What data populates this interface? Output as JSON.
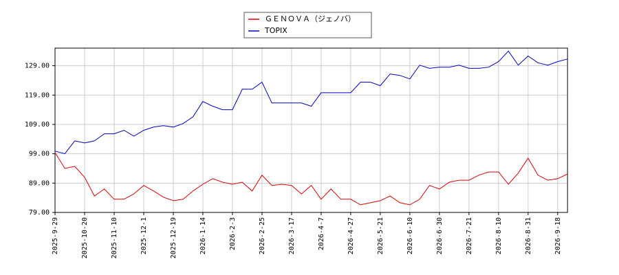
{
  "chart_data": {
    "type": "line",
    "categories": [
      "2025-9-29",
      null,
      null,
      "2025-10-20",
      null,
      null,
      "2025-11-10",
      null,
      null,
      "2025-12-1",
      null,
      null,
      "2025-12-19",
      null,
      null,
      "2026-1-14",
      null,
      null,
      "2026-2-3",
      null,
      null,
      "2026-2-25",
      null,
      null,
      "2026-3-17",
      null,
      null,
      "2026-4-7",
      null,
      null,
      "2026-4-27",
      null,
      null,
      "2026-5-21",
      null,
      null,
      "2026-6-10",
      null,
      null,
      "2026-6-30",
      null,
      null,
      "2026-7-21",
      null,
      null,
      "2026-8-10",
      null,
      null,
      "2026-8-31",
      null,
      null,
      "2026-9-18",
      null
    ],
    "series": [
      {
        "name": "ＧＥＮＯＶＡ（ジェノバ）",
        "color": "#e00000",
        "values": [
          99.4,
          94,
          94.7,
          91,
          84.6,
          87,
          83.5,
          83.5,
          85.3,
          88.2,
          86.3,
          84.2,
          83,
          83.5,
          86.3,
          88.6,
          90.5,
          89.3,
          88.6,
          89.3,
          86.3,
          91.7,
          88.2,
          88.6,
          88.2,
          85.3,
          88.2,
          83.5,
          87,
          83.5,
          83.5,
          81.6,
          82.3,
          83,
          84.6,
          82.3,
          81.6,
          83.5,
          88.2,
          87,
          89.3,
          90,
          90,
          91.7,
          92.8,
          92.8,
          88.6,
          92.4,
          97.5,
          91.7,
          90,
          90.5,
          92.1
        ]
      },
      {
        "name": "TOPIX",
        "color": "#0000cc",
        "values": [
          99.9,
          99,
          103.4,
          102.7,
          103.4,
          105.8,
          105.8,
          107,
          105,
          107,
          108.1,
          108.6,
          108.1,
          109.3,
          111.6,
          116.8,
          115.2,
          114,
          114,
          121,
          121,
          123.4,
          116.3,
          116.3,
          116.3,
          116.3,
          115.2,
          119.8,
          119.8,
          119.8,
          119.8,
          123.4,
          123.4,
          122.2,
          126.2,
          125.7,
          124.5,
          129.2,
          128.1,
          128.5,
          128.5,
          129.2,
          128.1,
          128.1,
          128.5,
          130.4,
          134,
          129.2,
          132.3,
          130,
          129.2,
          130.4,
          131.3
        ]
      }
    ],
    "ylim": [
      79,
      135
    ],
    "yticks": [
      {
        "value": 79,
        "label": "79.00"
      },
      {
        "value": 89,
        "label": "89.00"
      },
      {
        "value": 99,
        "label": "99.00"
      },
      {
        "value": 109,
        "label": "109.00"
      },
      {
        "value": 119,
        "label": "119.00"
      },
      {
        "value": 129,
        "label": "129.00"
      }
    ],
    "grid": true,
    "legend": "top"
  }
}
